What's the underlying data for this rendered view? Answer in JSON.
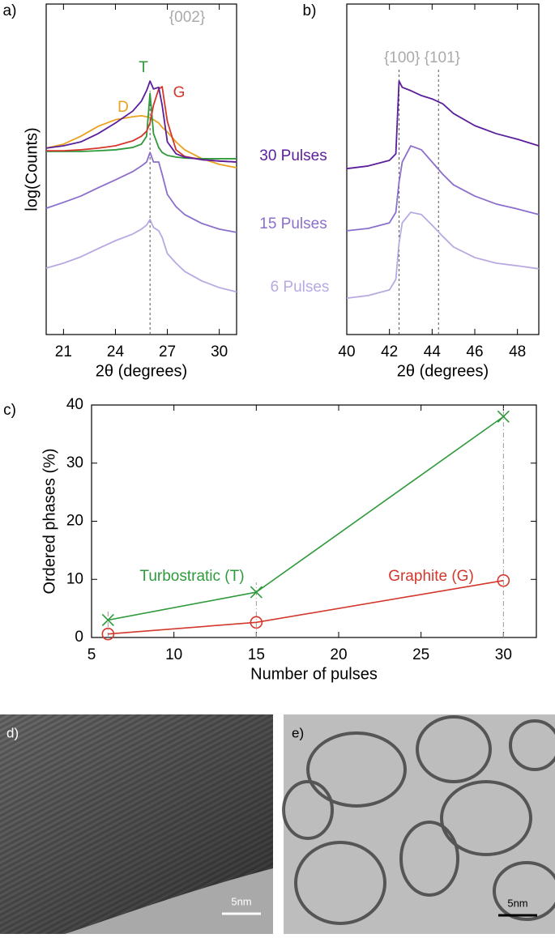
{
  "chart_data": [
    {
      "type": "line",
      "panel_label": "a)",
      "xlabel": "2θ (degrees)",
      "ylabel": "log(Counts)",
      "xlim": [
        20,
        31
      ],
      "xticks": [
        21,
        24,
        27,
        30
      ],
      "ylim": [
        0,
        10
      ],
      "vlines": [
        26
      ],
      "annotations": [
        {
          "text": "{002}",
          "x": 26
        }
      ],
      "x": [
        20,
        21,
        22,
        23,
        24,
        25,
        25.5,
        25.8,
        26,
        26.2,
        26.5,
        26.7,
        27,
        27.5,
        28,
        29,
        30,
        31
      ],
      "series": [
        {
          "name": "D",
          "color": "#e8a21e",
          "values": [
            5.64,
            5.76,
            6.0,
            6.3,
            6.5,
            6.59,
            6.62,
            6.59,
            6.57,
            6.5,
            6.4,
            6.27,
            6.13,
            5.83,
            5.59,
            5.32,
            5.15,
            5.05
          ]
        },
        {
          "name": "T",
          "color": "#2f9a3c",
          "values": [
            5.54,
            5.54,
            5.54,
            5.56,
            5.59,
            5.66,
            5.76,
            6.0,
            7.3,
            6.08,
            5.66,
            5.51,
            5.42,
            5.37,
            5.34,
            5.32,
            5.32,
            5.32
          ]
        },
        {
          "name": "G",
          "color": "#d4372c",
          "values": [
            5.56,
            5.56,
            5.59,
            5.64,
            5.71,
            5.86,
            6.0,
            6.15,
            6.4,
            6.94,
            7.43,
            7.5,
            6.45,
            5.59,
            5.39,
            5.29,
            5.25,
            5.22
          ]
        },
        {
          "name": "30 Pulses",
          "color": "#5b1f9c",
          "values": [
            5.64,
            5.71,
            5.83,
            6.08,
            6.4,
            6.76,
            7.06,
            7.38,
            7.67,
            7.43,
            7.48,
            6.94,
            5.83,
            5.47,
            5.37,
            5.29,
            5.25,
            5.22
          ]
        },
        {
          "name": "15 Pulses",
          "color": "#8b6fcc",
          "values": [
            3.82,
            4.0,
            4.19,
            4.44,
            4.68,
            4.93,
            5.1,
            5.22,
            5.51,
            5.22,
            5.22,
            4.85,
            4.24,
            3.87,
            3.63,
            3.36,
            3.19,
            3.09
          ]
        },
        {
          "name": "6 Pulses",
          "color": "#b9a9e2",
          "values": [
            2.01,
            2.16,
            2.35,
            2.6,
            2.84,
            3.04,
            3.19,
            3.31,
            3.48,
            3.24,
            3.14,
            2.94,
            2.45,
            2.16,
            1.91,
            1.62,
            1.42,
            1.29
          ]
        }
      ]
    },
    {
      "type": "line",
      "panel_label": "b)",
      "xlabel": "2θ (degrees)",
      "xlim": [
        40,
        49
      ],
      "xticks": [
        40,
        42,
        44,
        46,
        48
      ],
      "ylim": [
        0,
        10
      ],
      "vlines": [
        42.45,
        44.3
      ],
      "annotations": [
        {
          "text": "{100} {101}"
        }
      ],
      "x": [
        40,
        41,
        42,
        42.3,
        42.45,
        42.6,
        43,
        43.5,
        44,
        44.5,
        45,
        46,
        47,
        48,
        49
      ],
      "series": [
        {
          "color": "#5b1f9c",
          "values": [
            5.02,
            5.1,
            5.27,
            5.47,
            7.67,
            7.48,
            7.38,
            7.23,
            7.13,
            6.98,
            6.69,
            6.32,
            6.08,
            5.91,
            5.71
          ]
        },
        {
          "color": "#8b6fcc",
          "values": [
            3.14,
            3.21,
            3.38,
            3.7,
            4.61,
            5.22,
            5.71,
            5.59,
            5.22,
            4.85,
            4.53,
            4.19,
            3.95,
            3.8,
            3.63
          ]
        },
        {
          "color": "#b9a9e2",
          "values": [
            1.1,
            1.18,
            1.35,
            1.67,
            2.77,
            3.38,
            3.7,
            3.63,
            3.31,
            2.97,
            2.65,
            2.33,
            2.16,
            2.08,
            1.99
          ]
        }
      ]
    },
    {
      "type": "line",
      "panel_label": "c)",
      "xlabel": "Number of pulses",
      "ylabel": "Ordered phases (%)",
      "xlim": [
        5,
        32
      ],
      "xticks": [
        5,
        10,
        15,
        20,
        25,
        30
      ],
      "ylim": [
        0,
        40
      ],
      "yticks": [
        0,
        10,
        20,
        30,
        40
      ],
      "x": [
        6,
        15,
        30
      ],
      "series": [
        {
          "name": "Turbostratic (T)",
          "color": "#2f9a3c",
          "marker": "x",
          "values": [
            3,
            7.8,
            38
          ]
        },
        {
          "name": "Graphite (G)",
          "color": "#d4372c",
          "marker": "o",
          "values": [
            0.6,
            2.6,
            9.8
          ]
        }
      ]
    }
  ],
  "images": [
    {
      "label": "d)",
      "scale_bar": "5nm"
    },
    {
      "label": "e)",
      "scale_bar": "5nm"
    }
  ]
}
